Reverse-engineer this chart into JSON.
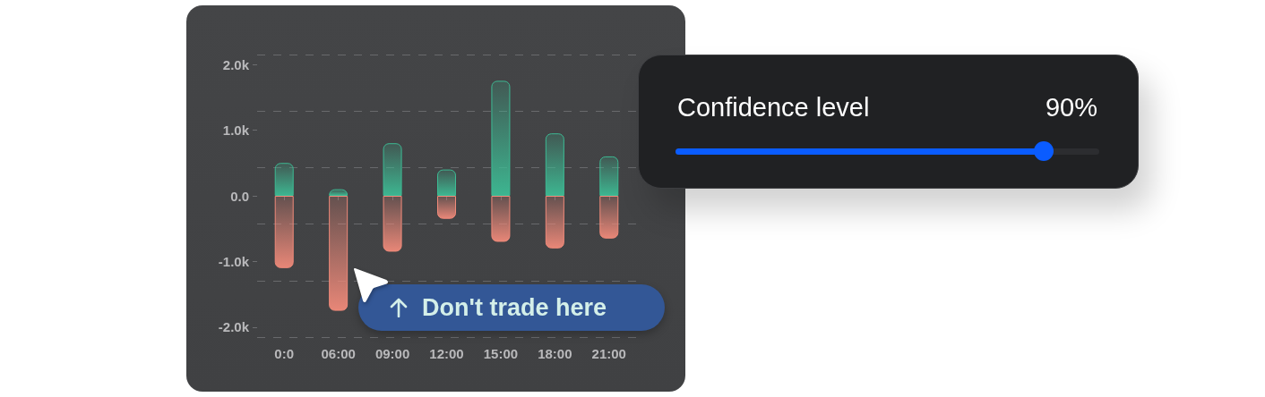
{
  "chart_data": {
    "type": "bar",
    "categories": [
      "0:0",
      "06:00",
      "09:00",
      "12:00",
      "15:00",
      "18:00",
      "21:00"
    ],
    "series": [
      {
        "color": "#3dbb94",
        "values": [
          500,
          100,
          800,
          400,
          1750,
          950,
          600
        ]
      },
      {
        "color": "#f08a7a",
        "values": [
          -1100,
          -1750,
          -850,
          -350,
          -700,
          -800,
          -650
        ]
      }
    ],
    "stacked": true,
    "ylim": [
      -2150,
      2150
    ],
    "yticks": [
      {
        "value": -2150,
        "label": null
      },
      {
        "value": -2000,
        "label": "-2.0k"
      },
      {
        "value": -1290,
        "label": null
      },
      {
        "value": -1000,
        "label": "-1.0k"
      },
      {
        "value": -430,
        "label": null
      },
      {
        "value": 0,
        "label": "0.0"
      },
      {
        "value": 430,
        "label": null
      },
      {
        "value": 1000,
        "label": "1.0k"
      },
      {
        "value": 1290,
        "label": null
      },
      {
        "value": 2000,
        "label": "2.0k"
      },
      {
        "value": 2150,
        "label": null
      }
    ],
    "grid": true,
    "annotations": [
      "Confidence level",
      "90%",
      "Don't trade here"
    ]
  }
}
